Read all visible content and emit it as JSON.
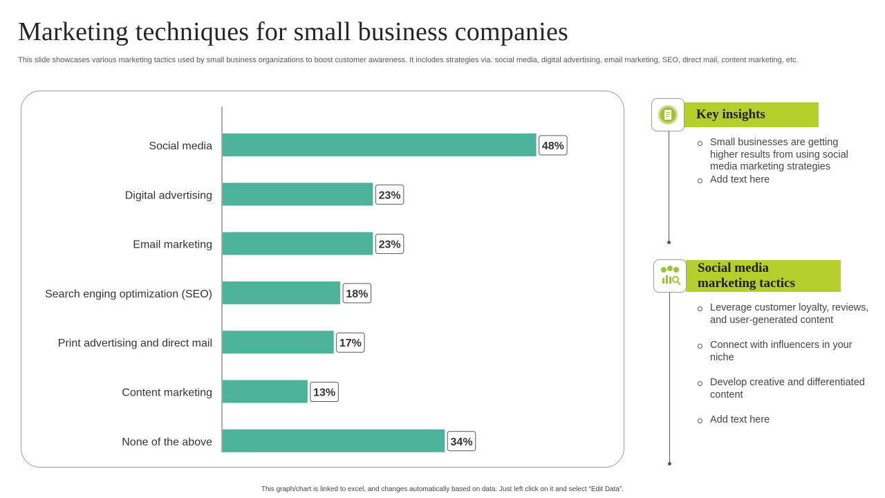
{
  "page": {
    "title": "Marketing techniques for small business companies",
    "subtitle": "This slide showcases various marketing tactics used by small business organizations to boost customer awareness. It includes strategies via. social media, digital advertising, email marketing, SEO, direct mail, content marketing, etc.",
    "footer": "This graph/chart is linked to excel, and changes automatically based on data. Just left click on it and select “Edit Data”."
  },
  "colors": {
    "bar": "#4cb39a",
    "accent": "#b4cf2c",
    "icon": "#9cc13b"
  },
  "chart_data": {
    "type": "bar",
    "orientation": "horizontal",
    "categories": [
      "Social media",
      "Digital advertising",
      "Email marketing",
      "Search enging optimization (SEO)",
      "Print advertising and direct mail",
      "Content marketing",
      "None of the above"
    ],
    "values": [
      48,
      23,
      23,
      18,
      17,
      13,
      34
    ],
    "value_labels": [
      "48%",
      "23%",
      "23%",
      "18%",
      "17%",
      "13%",
      "34%"
    ],
    "xlim": [
      0,
      55
    ],
    "grid": false,
    "legend": "none"
  },
  "key_insights": {
    "title": "Key insights",
    "icon": "document-icon",
    "bullets": [
      "Small businesses are getting higher results from using social media marketing strategies",
      "Add text here"
    ]
  },
  "social_tactics": {
    "title": "Social media marketing tactics",
    "icon": "analytics-icon",
    "bullets": [
      "Leverage customer loyalty, reviews, and user-generated content",
      "Connect with influencers in your niche",
      "Develop creative and differentiated content",
      "Add text here"
    ]
  }
}
